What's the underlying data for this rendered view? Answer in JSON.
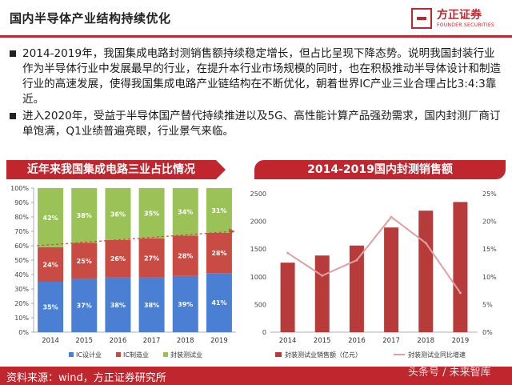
{
  "header": {
    "title": "国内半导体产业结构持续优化"
  },
  "logo": {
    "cn": "方正证券",
    "en": "FOUNDER SECURITIES"
  },
  "bullets": [
    "2014-2019年，我国集成电路封测销售额持续稳定增长，但占比呈现下降态势。说明我国封装行业作为半导体行业中发展最早的行业，在提升本行业市场规模的同时，也在积极推动半导体设计和制造行业的高速发展，使得我国集成电路产业链结构在不断优化，朝着世界IC产业三业合理占比3:4:3靠近。",
    "进入2020年，受益于半导体国产替代持续推进以及5G、高性能计算产品强劲需求，国内封测厂商订单饱满，Q1业绩普遍亮眼，行业景气来临。"
  ],
  "footer": {
    "source": "资料来源：wind，方正证券研究所",
    "watermark": "头条号 / 未来智库"
  },
  "chart_data": [
    {
      "type": "bar",
      "stacked": true,
      "panel_title": "近年来我国集成电路三业占比情况",
      "categories": [
        "2014",
        "2015",
        "2016",
        "2017",
        "2018",
        "2019"
      ],
      "series": [
        {
          "name": "IC设计业",
          "color": "#4a7fd4",
          "values": [
            35,
            37,
            38,
            38,
            39,
            41
          ],
          "labels": [
            "35%",
            "37%",
            "38%",
            "38%",
            "39%",
            "41%"
          ]
        },
        {
          "name": "IC制造业",
          "color": "#c84b44",
          "values": [
            24,
            25,
            26,
            27,
            28,
            28
          ],
          "labels": [
            "24%",
            "25%",
            "26%",
            "27%",
            "28%",
            "28%"
          ]
        },
        {
          "name": "封装测试业",
          "color": "#9bc257",
          "values": [
            42,
            38,
            36,
            35,
            34,
            31
          ],
          "labels": [
            "42%",
            "38%",
            "36%",
            "35%",
            "34%",
            "31%"
          ]
        }
      ],
      "ylim": [
        0,
        100
      ],
      "yticks": [
        "0%",
        "10%",
        "20%",
        "30%",
        "40%",
        "50%",
        "60%",
        "70%",
        "80%",
        "90%",
        "100%"
      ],
      "annotation": "dashed upward trend arrow over IC制造业"
    },
    {
      "type": "bar+line",
      "panel_title": "2014-2019国内封测销售额",
      "categories": [
        "2014",
        "2015",
        "2016",
        "2017",
        "2018",
        "2019"
      ],
      "bar_series": {
        "name": "封装测试业销售额（亿元）",
        "color": "#b83b3b",
        "values": [
          1255,
          1384,
          1564,
          1890,
          2194,
          2350
        ]
      },
      "line_series": {
        "name": "封装测试业同比增速",
        "color": "#e0a0a0",
        "values": [
          14.3,
          10.2,
          13.0,
          20.8,
          16.1,
          7.1
        ]
      },
      "y_left": {
        "lim": [
          0,
          2500
        ],
        "ticks": [
          "0",
          "500",
          "1000",
          "1500",
          "2000",
          "2500"
        ]
      },
      "y_right": {
        "lim": [
          0,
          25
        ],
        "ticks": [
          "0%",
          "5%",
          "10%",
          "15%",
          "20%",
          "25%"
        ]
      }
    }
  ]
}
